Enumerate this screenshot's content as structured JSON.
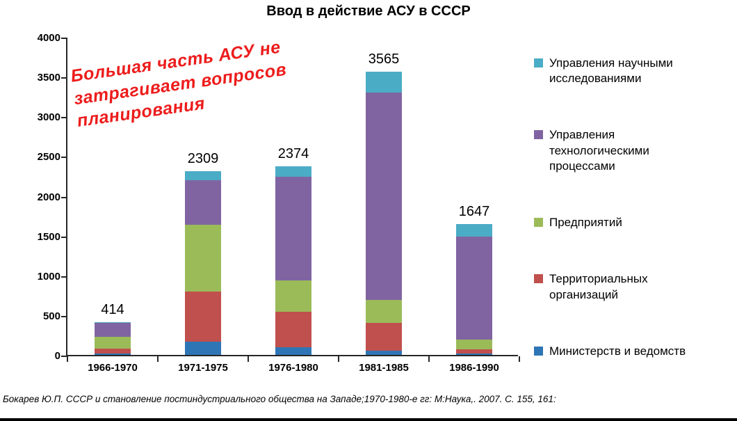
{
  "caption": "Бокарев Ю.П. СССР  и становление постиндустриального общества на Западе;1970-1980-е гг: М:Наука,. 2007. С. 155, 161:",
  "annotation": {
    "color": "#ed1c1c",
    "lines": [
      "Большая часть АСУ не",
      "затрагивает вопросов",
      "планирования"
    ]
  },
  "chart_data": {
    "type": "bar",
    "stacked": true,
    "title": "Ввод в действие АСУ в СССР",
    "categories": [
      "1966-1970",
      "1971-1975",
      "1976-1980",
      "1981-1985",
      "1986-1990"
    ],
    "totals": [
      414,
      2309,
      2374,
      3565,
      1647
    ],
    "series": [
      {
        "name": "Министерств и ведомств",
        "color": "#2e75b6",
        "values": [
          20,
          170,
          95,
          50,
          15
        ]
      },
      {
        "name": "Территориальных организаций",
        "color": "#c0504d",
        "values": [
          60,
          630,
          445,
          350,
          55
        ]
      },
      {
        "name": "Предприятий",
        "color": "#9bbb59",
        "values": [
          150,
          840,
          400,
          290,
          120
        ]
      },
      {
        "name": "Управления технологическими процессами",
        "color": "#8064a2",
        "values": [
          170,
          560,
          1300,
          2610,
          1300
        ]
      },
      {
        "name": "Управления научными исследованиями",
        "color": "#4bacc6",
        "values": [
          14,
          109,
          134,
          265,
          157
        ]
      }
    ],
    "ylim": [
      0,
      4000
    ],
    "ytick_step": 500,
    "legend_position": "right",
    "grid": false
  }
}
